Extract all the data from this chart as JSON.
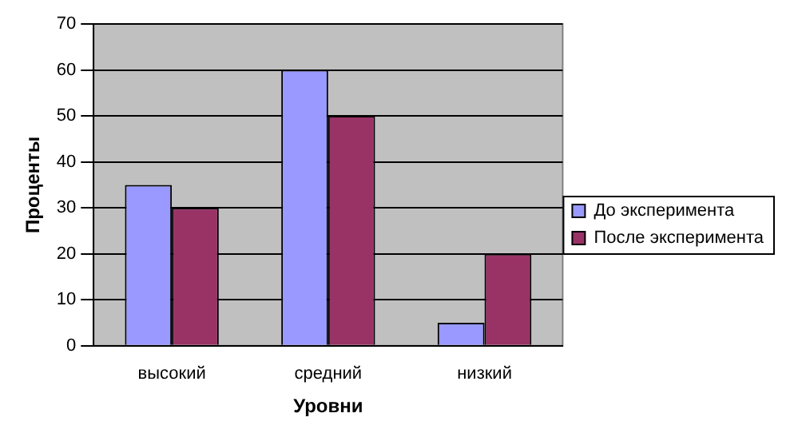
{
  "chart_data": {
    "type": "bar",
    "xlabel": "Уровни",
    "ylabel": "Проценты",
    "categories": [
      "высокий",
      "средний",
      "низкий"
    ],
    "series": [
      {
        "name": "До эксперимента",
        "color": "#9999ff",
        "values": [
          35,
          60,
          5
        ]
      },
      {
        "name": "После эксперимента",
        "color": "#993366",
        "values": [
          30,
          50,
          20
        ]
      }
    ],
    "ylim": [
      0,
      70
    ],
    "yticks": [
      0,
      10,
      20,
      30,
      40,
      50,
      60,
      70
    ],
    "grid": "y",
    "legend": "right"
  }
}
